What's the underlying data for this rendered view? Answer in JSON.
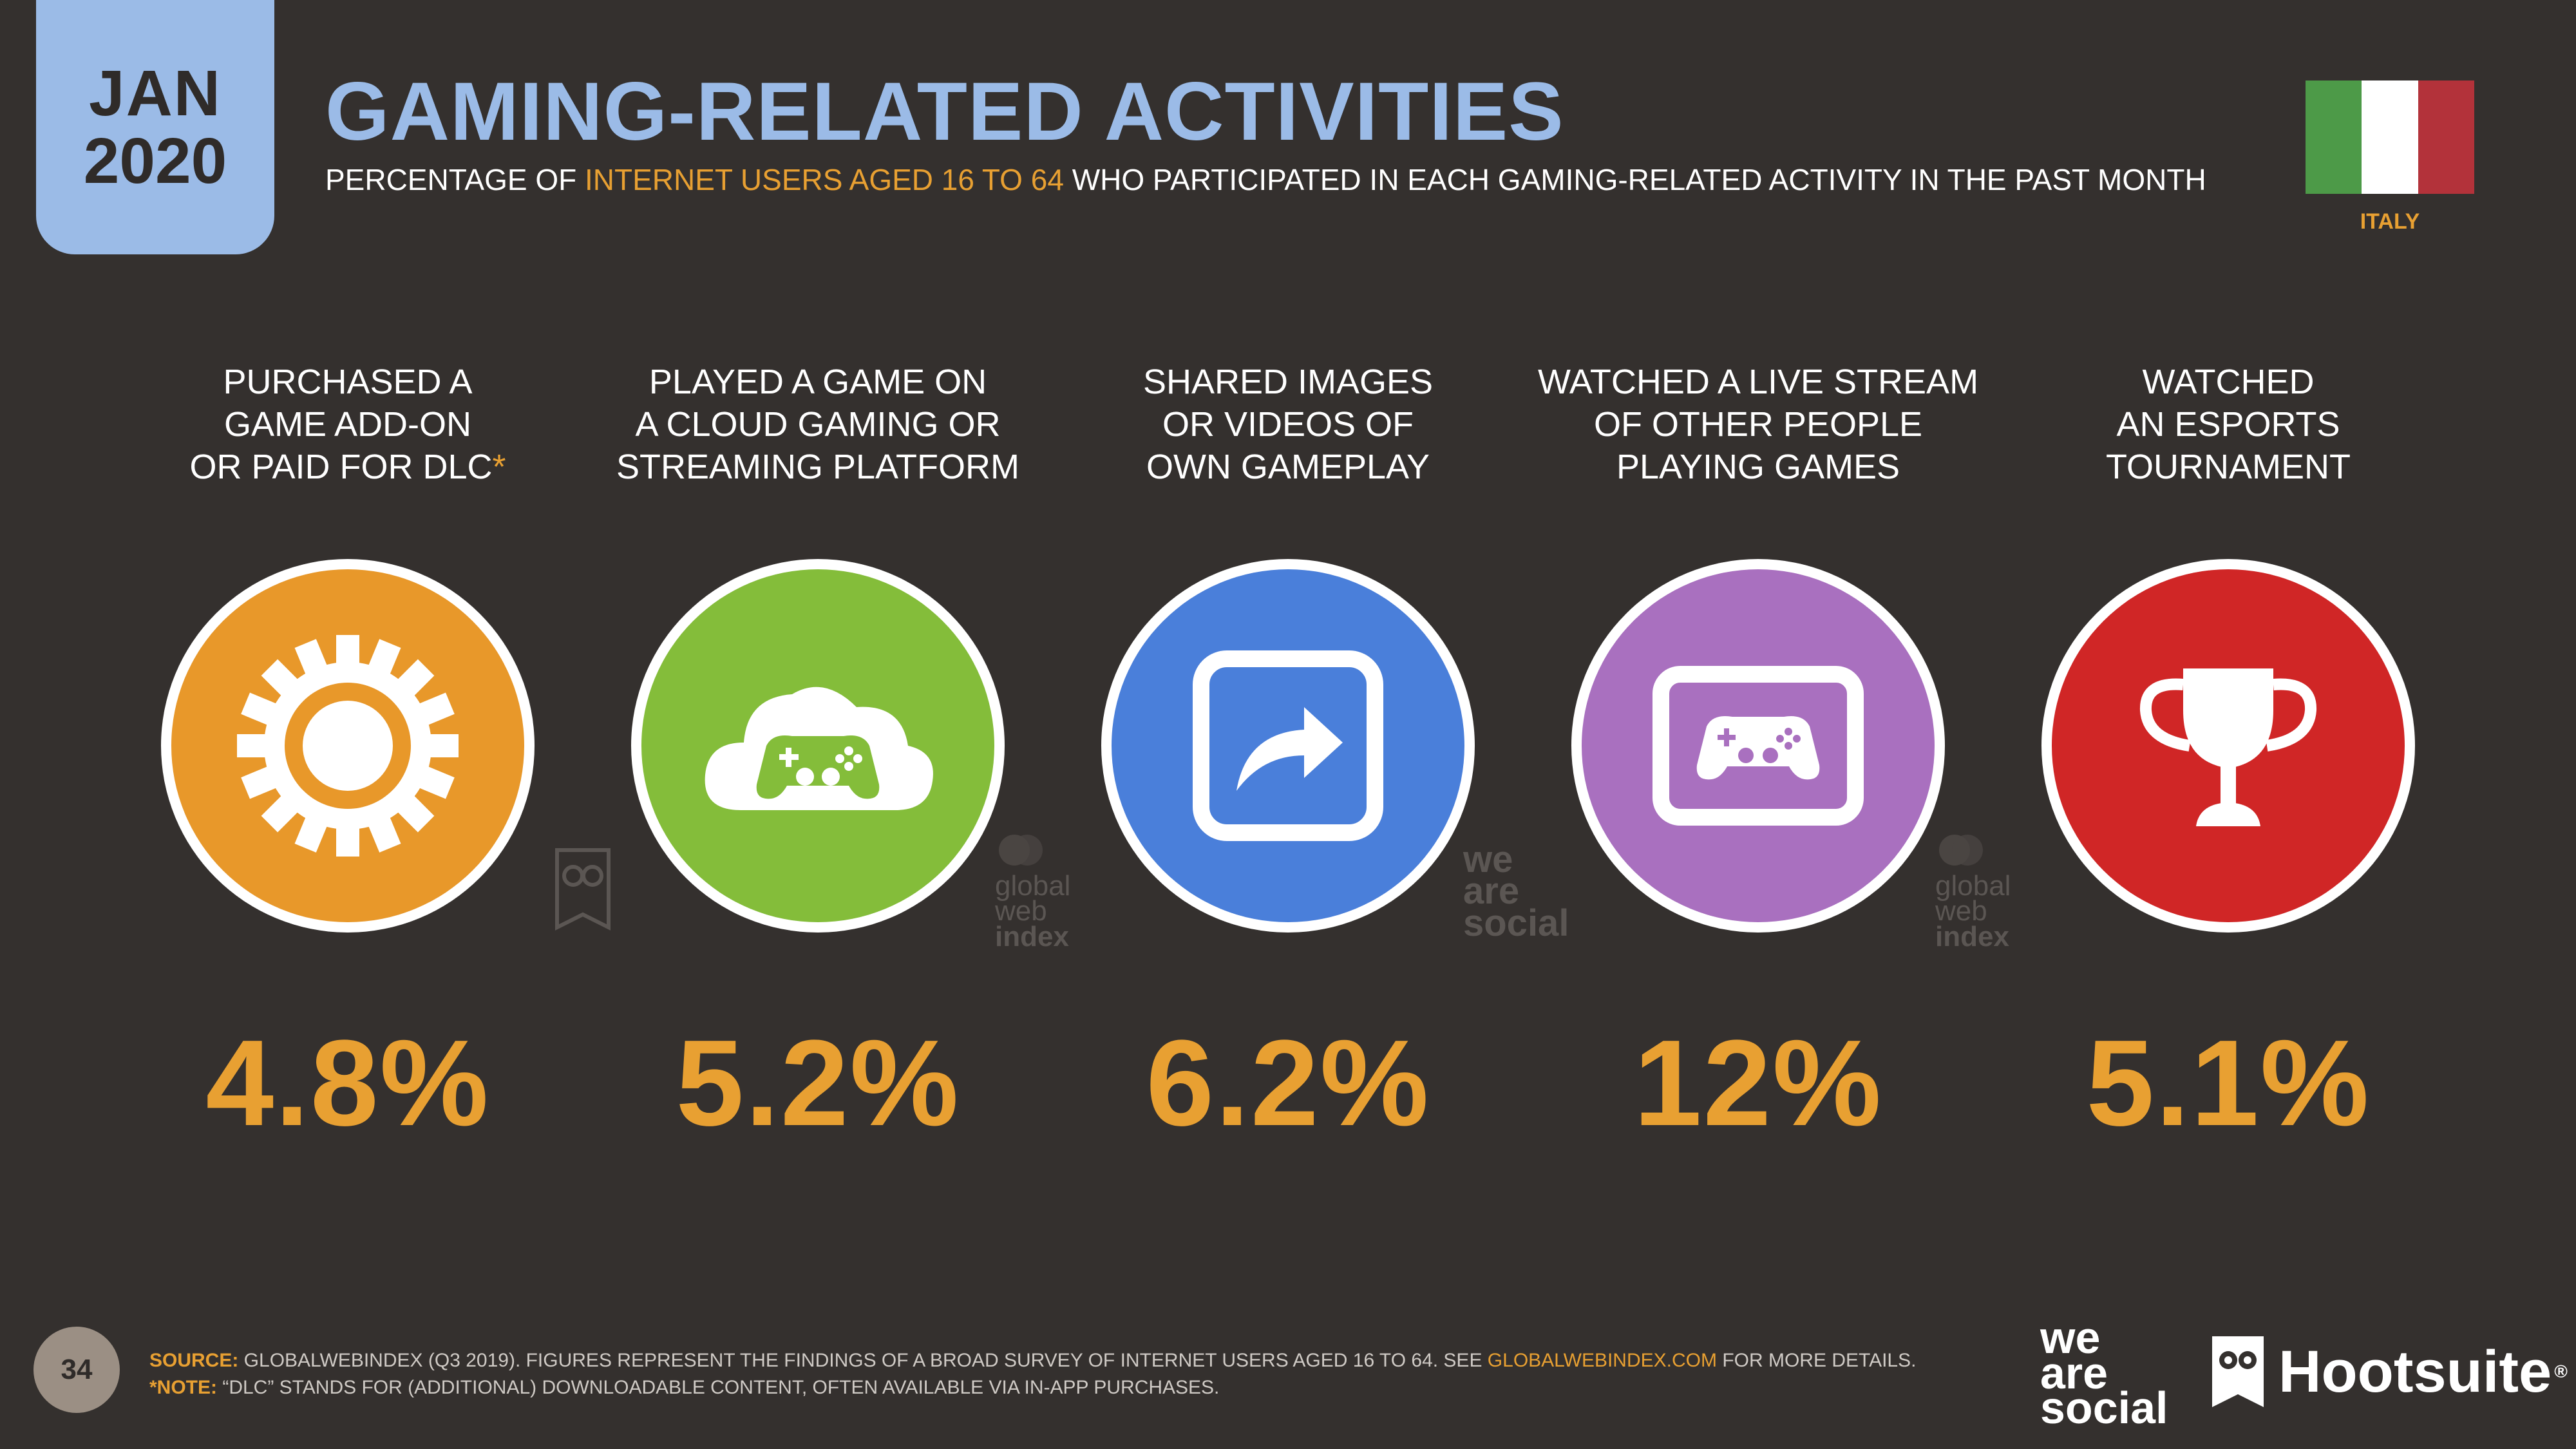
{
  "badge": {
    "month": "JAN",
    "year": "2020"
  },
  "title": "GAMING-RELATED ACTIVITIES",
  "subtitle": {
    "before": "PERCENTAGE OF ",
    "highlight": "INTERNET USERS AGED 16 TO 64",
    "after": " WHO PARTICIPATED IN EACH GAMING-RELATED ACTIVITY IN THE PAST MONTH"
  },
  "country": {
    "label": "ITALY",
    "flag_colors": [
      "#4d9a48",
      "#ffffff",
      "#b3323a"
    ]
  },
  "activities": [
    {
      "label": "PURCHASED A\nGAME ADD-ON\nOR PAID FOR DLC",
      "marker": "*",
      "value": "4.8%",
      "color": "#e8982a",
      "icon": "gear-icon"
    },
    {
      "label": "PLAYED A GAME ON\nA CLOUD GAMING OR\nSTREAMING PLATFORM",
      "marker": "",
      "value": "5.2%",
      "color": "#84bd3a",
      "icon": "cloud-gamepad-icon"
    },
    {
      "label": "SHARED IMAGES\nOR VIDEOS OF\nOWN GAMEPLAY",
      "marker": "",
      "value": "6.2%",
      "color": "#4a7fda",
      "icon": "share-arrow-icon"
    },
    {
      "label": "WATCHED A LIVE STREAM\nOF OTHER PEOPLE\nPLAYING GAMES",
      "marker": "",
      "value": "12%",
      "color": "#a970bf",
      "icon": "screen-gamepad-icon"
    },
    {
      "label": "WATCHED\nAN ESPORTS\nTOURNAMENT",
      "marker": "",
      "value": "5.1%",
      "color": "#d02626",
      "icon": "trophy-icon"
    }
  ],
  "watermarks": {
    "gwi": [
      "global",
      "web",
      "index"
    ],
    "was": [
      "we",
      "are",
      "social"
    ]
  },
  "footer": {
    "page_number": "34",
    "source_key": "SOURCE:",
    "source_text": " GLOBALWEBINDEX (Q3 2019). FIGURES REPRESENT THE FINDINGS OF A BROAD SURVEY OF INTERNET USERS AGED 16 TO 64. SEE ",
    "source_link": "GLOBALWEBINDEX.COM",
    "source_end": " FOR MORE DETAILS.",
    "note_key": "*NOTE:",
    "note_text": " “DLC” STANDS FOR (ADDITIONAL) DOWNLOADABLE CONTENT, OFTEN AVAILABLE VIA IN-APP PURCHASES."
  },
  "logos": {
    "was": [
      "we",
      "are",
      "social"
    ],
    "hootsuite": "Hootsuite",
    "hootsuite_mark": "®"
  }
}
